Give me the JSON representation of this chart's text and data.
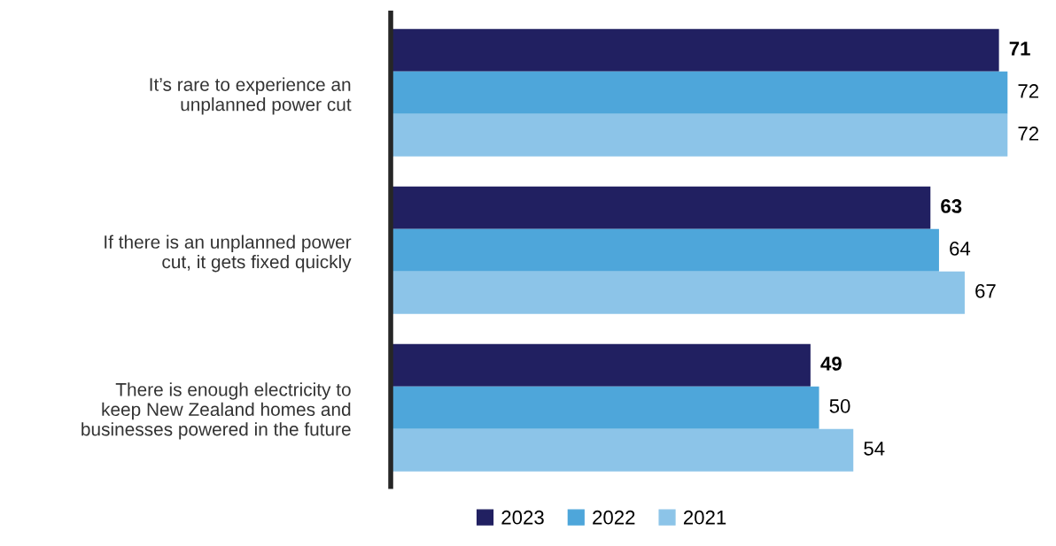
{
  "chart_data": {
    "type": "bar",
    "orientation": "horizontal",
    "categories": [
      "It’s rare to experience an unplanned power cut",
      "If there is an unplanned power cut, it gets fixed quickly",
      "There is enough electricity to keep New Zealand homes and businesses powered in the future"
    ],
    "series": [
      {
        "name": "2023",
        "color": "#212061",
        "values": [
          71,
          63,
          49
        ]
      },
      {
        "name": "2022",
        "color": "#4ea6da",
        "values": [
          72,
          64,
          50
        ]
      },
      {
        "name": "2021",
        "color": "#8cc4e8",
        "values": [
          72,
          67,
          54
        ]
      }
    ],
    "data_labels": true,
    "legend": "bottom",
    "grid": false
  }
}
